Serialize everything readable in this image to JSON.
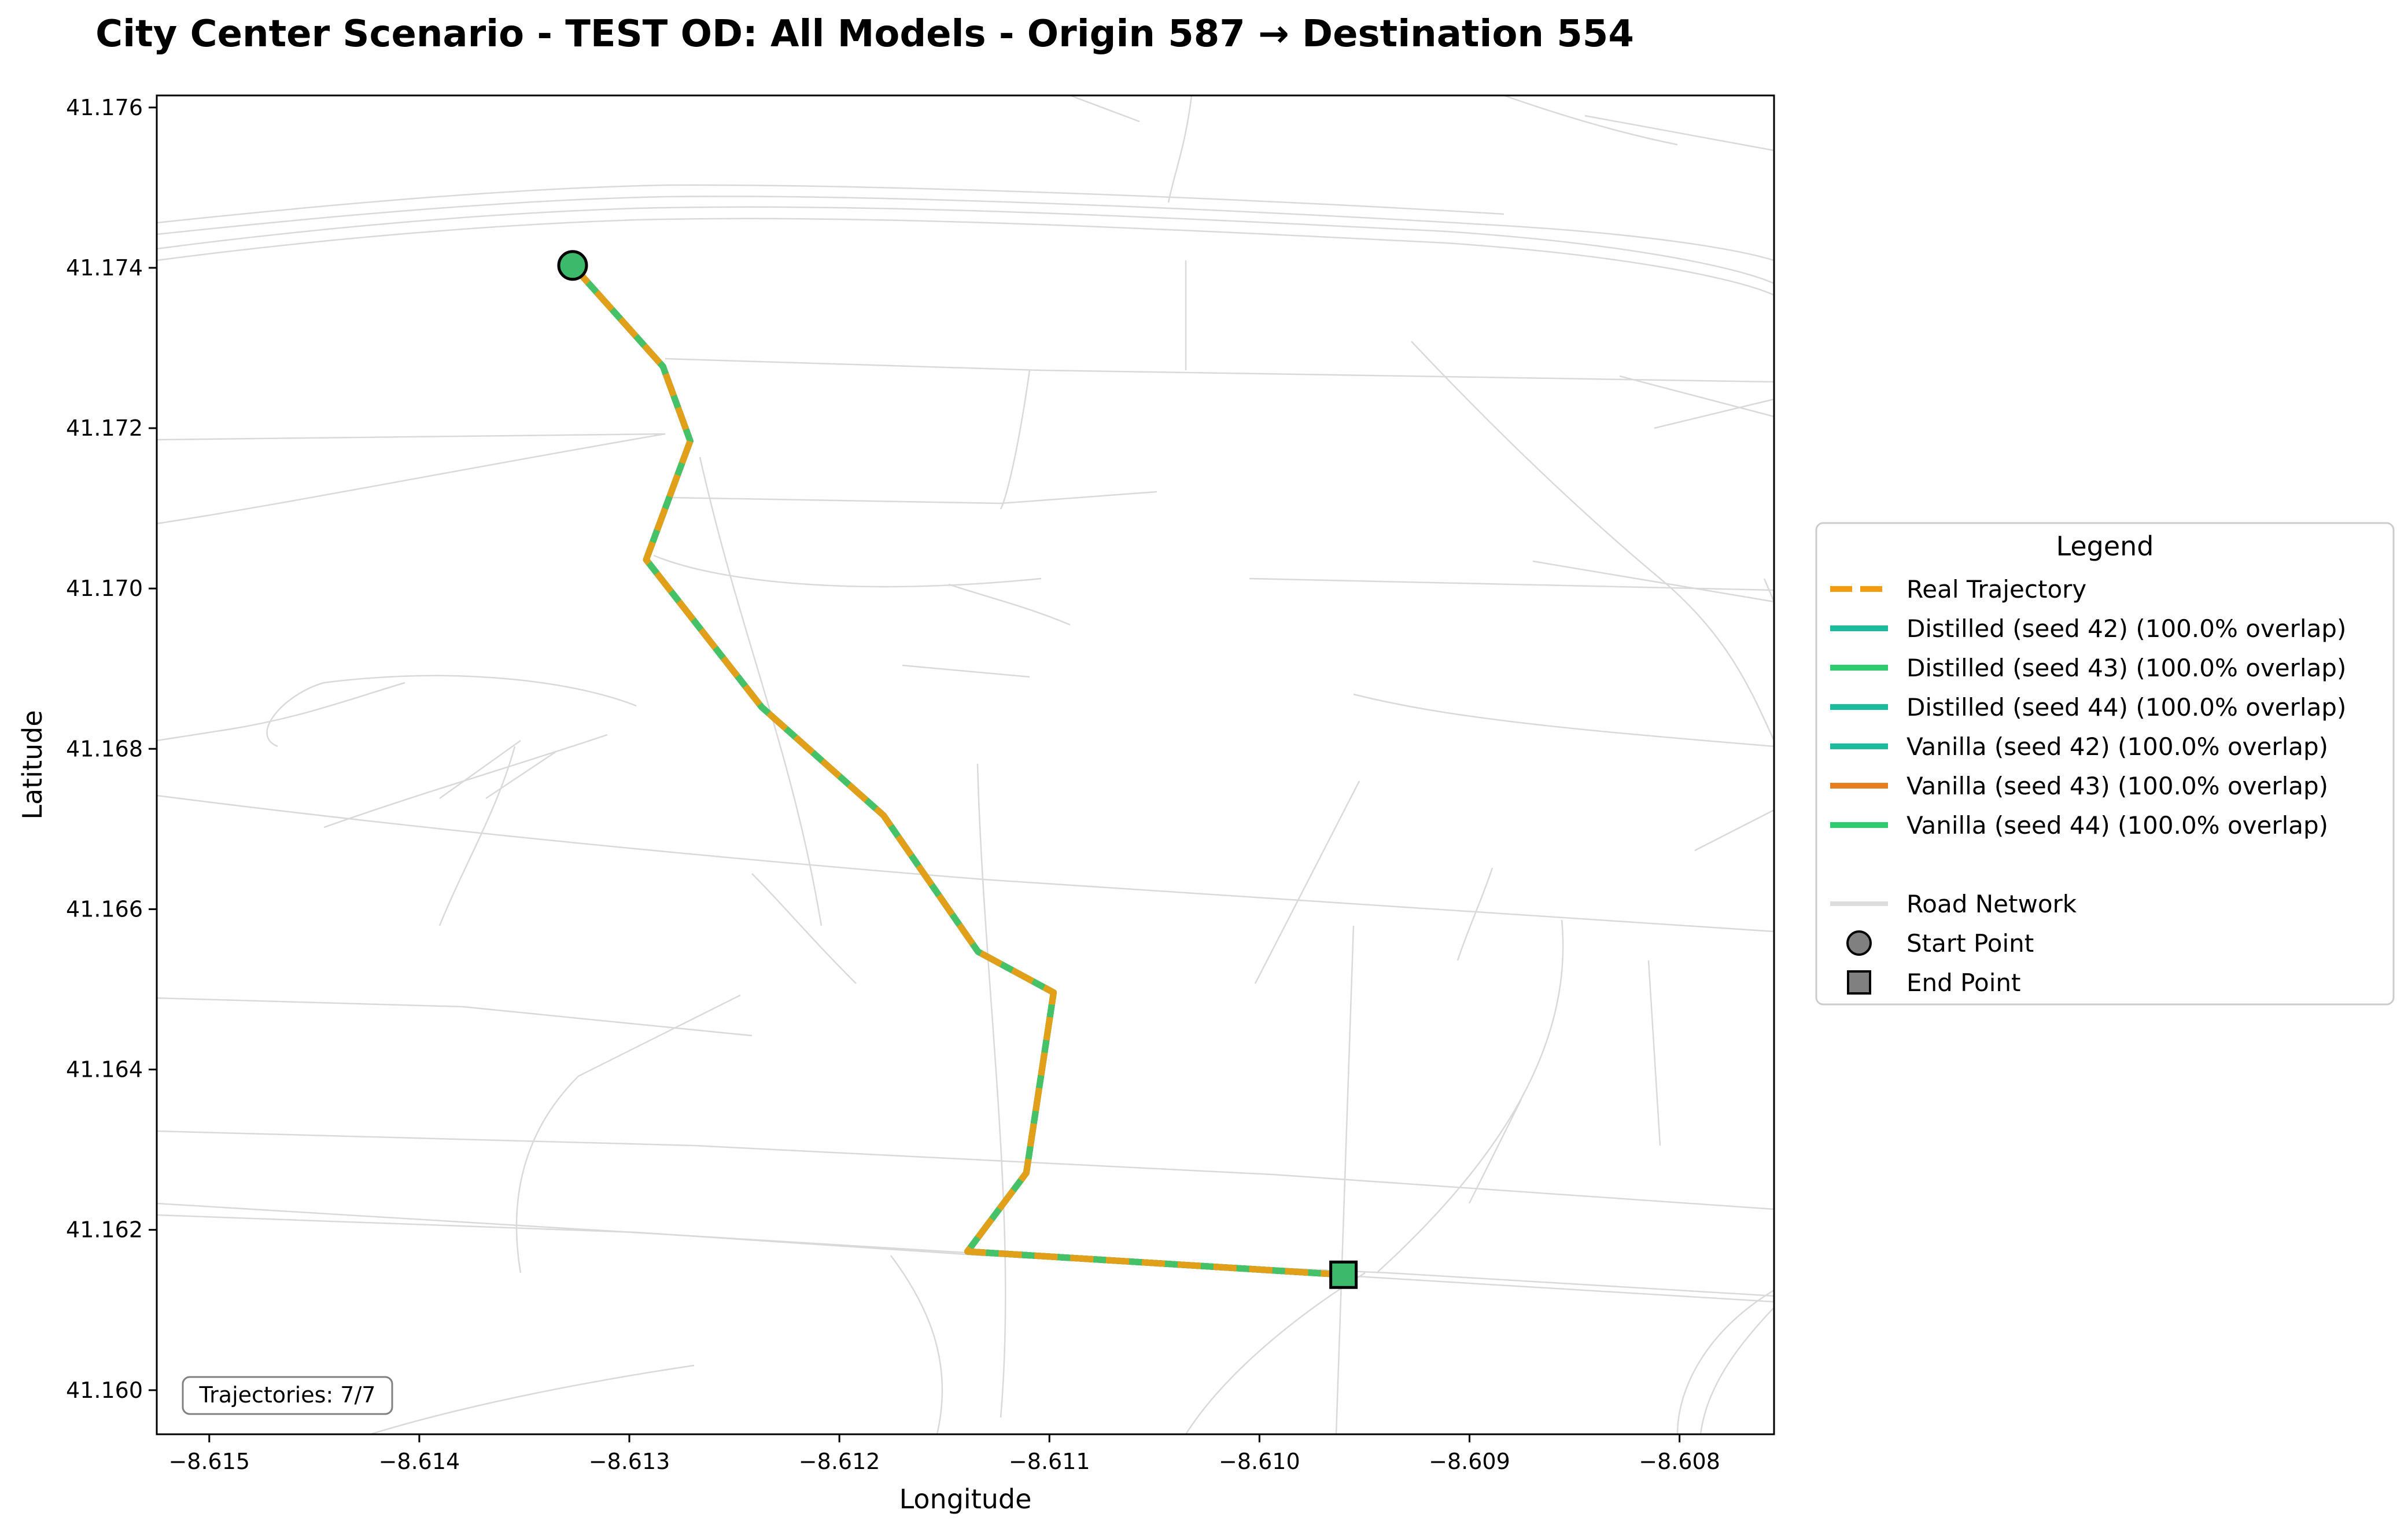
{
  "chart_data": {
    "type": "map-trajectory",
    "title": "City Center Scenario - TEST OD: All Models - Origin 587 → Destination 554",
    "xlabel": "Longitude",
    "ylabel": "Latitude",
    "xlim": [
      -8.61525,
      -8.60755
    ],
    "ylim": [
      41.15945,
      41.17615
    ],
    "x_ticks": [
      -8.615,
      -8.614,
      -8.613,
      -8.612,
      -8.611,
      -8.61,
      -8.609,
      -8.608
    ],
    "x_tick_labels": [
      "−8.615",
      "−8.614",
      "−8.613",
      "−8.612",
      "−8.611",
      "−8.610",
      "−8.609",
      "−8.608"
    ],
    "y_ticks": [
      41.16,
      41.162,
      41.164,
      41.166,
      41.168,
      41.17,
      41.172,
      41.174,
      41.176
    ],
    "y_tick_labels": [
      "41.160",
      "41.162",
      "41.164",
      "41.166",
      "41.168",
      "41.170",
      "41.172",
      "41.174",
      "41.176"
    ],
    "trajectory": [
      [
        -8.61327,
        41.17403
      ],
      [
        -8.61284,
        41.17277
      ],
      [
        -8.61271,
        41.17184
      ],
      [
        -8.61292,
        41.17036
      ],
      [
        -8.61237,
        41.16852
      ],
      [
        -8.61179,
        41.16717
      ],
      [
        -8.61134,
        41.16547
      ],
      [
        -8.61098,
        41.16496
      ],
      [
        -8.61111,
        41.16271
      ],
      [
        -8.61139,
        41.16173
      ],
      [
        -8.6096,
        41.16144
      ]
    ],
    "start_point": [
      -8.61327,
      41.17403
    ],
    "end_point": [
      -8.6096,
      41.16144
    ],
    "legend_title": "Legend",
    "legend_location": "outside-right",
    "series": [
      {
        "name": "Real Trajectory",
        "color": "#f39c12",
        "style": "dashed"
      },
      {
        "name": "Distilled (seed 42) (100.0% overlap)",
        "color": "#1abc9c",
        "style": "solid"
      },
      {
        "name": "Distilled (seed 43) (100.0% overlap)",
        "color": "#2ecc71",
        "style": "solid"
      },
      {
        "name": "Distilled (seed 44) (100.0% overlap)",
        "color": "#1abc9c",
        "style": "solid"
      },
      {
        "name": "Vanilla (seed 42) (100.0% overlap)",
        "color": "#1abc9c",
        "style": "solid"
      },
      {
        "name": "Vanilla (seed 43) (100.0% overlap)",
        "color": "#e67e22",
        "style": "solid"
      },
      {
        "name": "Vanilla (seed 44) (100.0% overlap)",
        "color": "#2ecc71",
        "style": "solid"
      }
    ],
    "extra_legend": [
      {
        "name": "Road Network",
        "kind": "line",
        "color": "#dddddd"
      },
      {
        "name": "Start Point",
        "kind": "circle",
        "color": "#808080"
      },
      {
        "name": "End Point",
        "kind": "square",
        "color": "#808080"
      }
    ],
    "counter_text": "Trajectories: 7/7",
    "marker_color": "#3cb96b",
    "road_color": "#d9d9d9",
    "grid": false
  }
}
